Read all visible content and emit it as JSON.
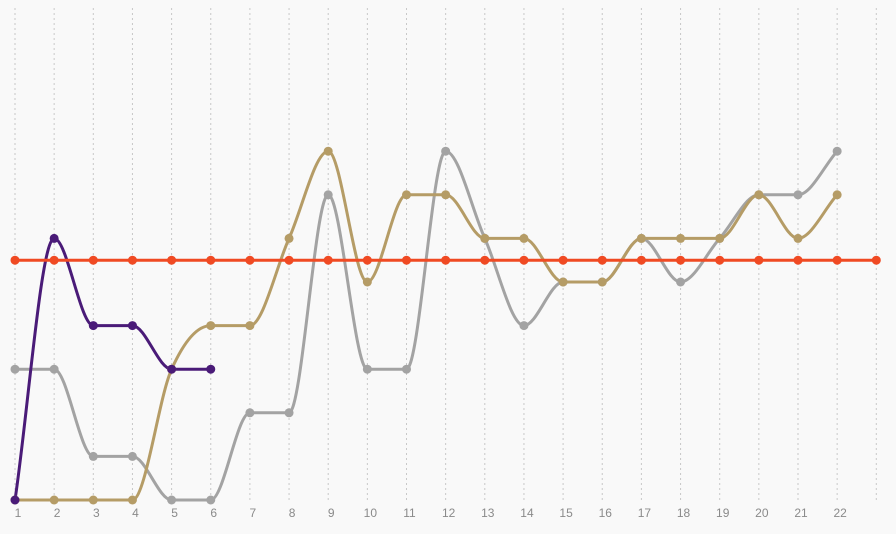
{
  "chart_data": {
    "type": "line",
    "title": "",
    "xlabel": "",
    "ylabel": "",
    "x": [
      1,
      2,
      3,
      4,
      5,
      6,
      7,
      8,
      9,
      10,
      11,
      12,
      13,
      14,
      15,
      16,
      17,
      18,
      19,
      20,
      21,
      22,
      23
    ],
    "x_tick_labels": [
      "1",
      "2",
      "3",
      "4",
      "5",
      "6",
      "7",
      "8",
      "9",
      "10",
      "11",
      "12",
      "13",
      "14",
      "15",
      "16",
      "17",
      "18",
      "19",
      "20",
      "21",
      "22"
    ],
    "ylim": [
      0,
      12
    ],
    "grid": "vertical dotted",
    "legend": "none",
    "series": [
      {
        "color": "#a3a3a3",
        "x": [
          1,
          2,
          3,
          4,
          5,
          6,
          7,
          8,
          9,
          10,
          11,
          12,
          13,
          14,
          15,
          16,
          17,
          18,
          19,
          20,
          21,
          22
        ],
        "values": [
          3,
          3,
          1,
          1,
          0,
          0,
          2,
          2,
          7,
          3,
          3,
          8,
          6,
          4,
          5,
          5,
          6,
          5,
          6,
          7,
          7,
          8
        ]
      },
      {
        "color": "#b59c66",
        "x": [
          1,
          2,
          3,
          4,
          5,
          6,
          7,
          8,
          9,
          10,
          11,
          12,
          13,
          14,
          15,
          16,
          17,
          18,
          19,
          20,
          21,
          22
        ],
        "values": [
          0,
          0,
          0,
          0,
          3,
          4,
          4,
          6,
          8,
          5,
          7,
          7,
          6,
          6,
          5,
          5,
          6,
          6,
          6,
          7,
          6,
          7
        ]
      },
      {
        "color": "#4a1b78",
        "x": [
          1,
          2,
          3,
          4,
          5,
          6
        ],
        "values": [
          0,
          6,
          4,
          4,
          3,
          3
        ]
      },
      {
        "color": "#f04a23",
        "x": [
          1,
          2,
          3,
          4,
          5,
          6,
          7,
          8,
          9,
          10,
          11,
          12,
          13,
          14,
          15,
          16,
          17,
          18,
          19,
          20,
          21,
          22,
          23
        ],
        "values": [
          5.5,
          5.5,
          5.5,
          5.5,
          5.5,
          5.5,
          5.5,
          5.5,
          5.5,
          5.5,
          5.5,
          5.5,
          5.5,
          5.5,
          5.5,
          5.5,
          5.5,
          5.5,
          5.5,
          5.5,
          5.5,
          5.5,
          5.5
        ]
      }
    ]
  }
}
